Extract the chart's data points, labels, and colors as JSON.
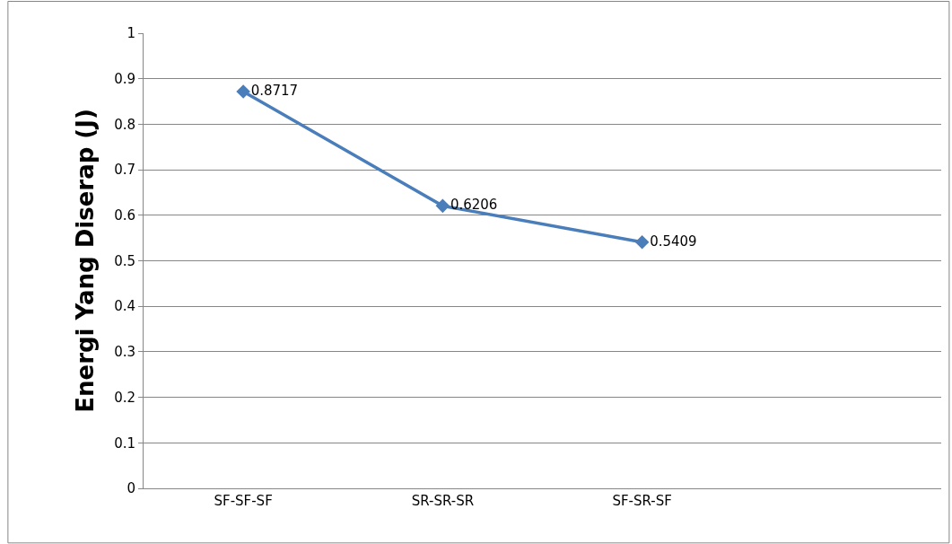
{
  "chart_data": {
    "type": "line",
    "ylabel": "Energi Yang Diserap (J)",
    "categories": [
      "SF-SF-SF",
      "SR-SR-SR",
      "SF-SR-SF",
      null
    ],
    "series": [
      {
        "color": "#4a7ebb",
        "values": [
          0.8717,
          0.6206,
          0.5409,
          null
        ]
      }
    ],
    "ylim": [
      0,
      1
    ],
    "yticks": [
      0,
      0.1,
      0.2,
      0.3,
      0.4,
      0.5,
      0.6,
      0.7,
      0.8,
      0.9,
      1
    ],
    "grid": "y",
    "legend": false,
    "marker": "diamond",
    "line_style": "solid",
    "data_labels": true
  }
}
